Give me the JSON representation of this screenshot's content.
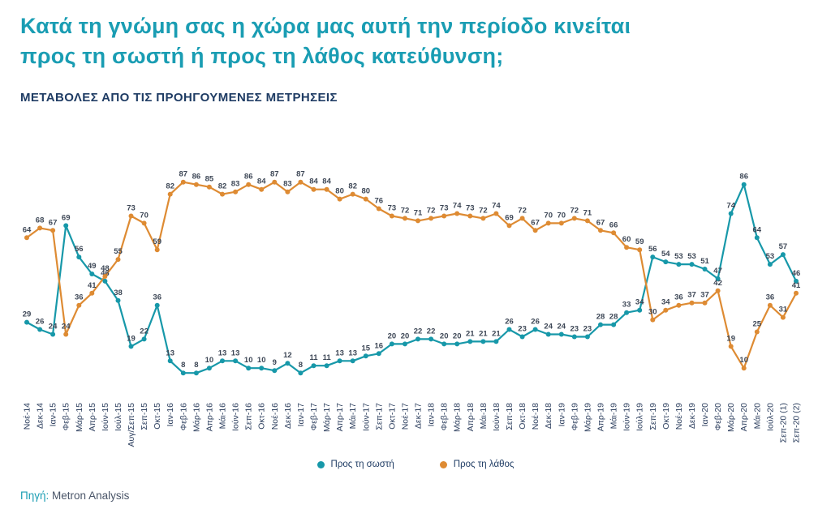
{
  "header": {
    "title_line1": "Κατά τη γνώμη σας η χώρα μας αυτή την περίοδο κινείται",
    "title_line2": "προς τη σωστή ή προς τη λάθος κατεύθυνση;",
    "subtitle": "ΜΕΤΑΒΟΛΕΣ ΑΠΟ ΤΙΣ ΠΡΟΗΓΟΥΜΕΝΕΣ ΜΕΤΡΗΣΕΙΣ"
  },
  "footer": {
    "source_label": "Πηγή:",
    "source_value": "Metron Analysis"
  },
  "colors": {
    "title": "#1a9db3",
    "subtitle": "#1f3c64",
    "right_series": "#1798a9",
    "wrong_series": "#de8b33",
    "data_label": "#3d4756",
    "axis_label": "#2f4160"
  },
  "chart_data": {
    "type": "line",
    "title": "Κατά τη γνώμη σας η χώρα μας αυτή την περίοδο κινείται προς τη σωστή ή προς τη λάθος κατεύθυνση;",
    "subtitle": "ΜΕΤΑΒΟΛΕΣ ΑΠΟ ΤΙΣ ΠΡΟΗΓΟΥΜΕΝΕΣ ΜΕΤΡΗΣΕΙΣ",
    "xlabel": "",
    "ylabel": "",
    "ylim": [
      0,
      100
    ],
    "grid": false,
    "data_labels": true,
    "legend_position": "bottom",
    "x_tick_rotation": 90,
    "categories": [
      "Νοέ-14",
      "Δεκ-14",
      "Ιαν-15",
      "Φεβ-15",
      "Μάρ-15",
      "Απρ-15",
      "Ιούν-15",
      "Ιούλ-15",
      "Αυγ/Σεπ-15",
      "Σεπ-15",
      "Οκτ-15",
      "Ιαν-16",
      "Φεβ-16",
      "Μάρ-16",
      "Απρ-16",
      "Μάι-16",
      "Ιούν-16",
      "Σεπ-16",
      "Οκτ-16",
      "Νοέ-16",
      "Δεκ-16",
      "Ιαν-17",
      "Φεβ-17",
      "Μάρ-17",
      "Απρ-17",
      "Μάι-17",
      "Ιούν-17",
      "Σεπ-17",
      "Οκτ-17",
      "Νοέ-17",
      "Δεκ-17",
      "Ιαν-18",
      "Φεβ-18",
      "Μάρ-18",
      "Απρ-18",
      "Μάι-18",
      "Ιούν-18",
      "Σεπ-18",
      "Οκτ-18",
      "Νοέ-18",
      "Δεκ-18",
      "Ιαν-19",
      "Φεβ-19",
      "Μάρ-19",
      "Απρ-19",
      "Μάι-19",
      "Ιούν-19",
      "Ιούλ-19",
      "Σεπ-19",
      "Οκτ-19",
      "Νοέ-19",
      "Δεκ-19",
      "Ιαν-20",
      "Φεβ-20",
      "Μάρ-20",
      "Απρ-20",
      "Μάι-20",
      "Ιούλ-20",
      "Σεπ-20 (1)",
      "Σεπ-20 (2)"
    ],
    "series": [
      {
        "name": "Προς τη σωστή",
        "color_key": "right_series",
        "values": [
          29,
          26,
          24,
          69,
          56,
          49,
          46,
          38,
          19,
          22,
          36,
          13,
          8,
          8,
          10,
          13,
          13,
          10,
          10,
          9,
          12,
          8,
          11,
          11,
          13,
          13,
          15,
          16,
          20,
          20,
          22,
          22,
          20,
          20,
          21,
          21,
          21,
          26,
          23,
          26,
          24,
          24,
          23,
          23,
          28,
          28,
          33,
          34,
          56,
          54,
          53,
          53,
          51,
          47,
          74,
          86,
          64,
          53,
          57,
          46
        ]
      },
      {
        "name": "Προς τη λάθος",
        "color_key": "wrong_series",
        "values": [
          64,
          68,
          67,
          24,
          36,
          41,
          48,
          55,
          73,
          70,
          59,
          82,
          87,
          86,
          85,
          82,
          83,
          86,
          84,
          87,
          83,
          87,
          84,
          84,
          80,
          82,
          80,
          76,
          73,
          72,
          71,
          72,
          73,
          74,
          73,
          72,
          74,
          69,
          72,
          67,
          70,
          70,
          72,
          71,
          67,
          66,
          60,
          59,
          30,
          34,
          36,
          37,
          37,
          42,
          19,
          10,
          25,
          36,
          31,
          41
        ]
      }
    ]
  }
}
